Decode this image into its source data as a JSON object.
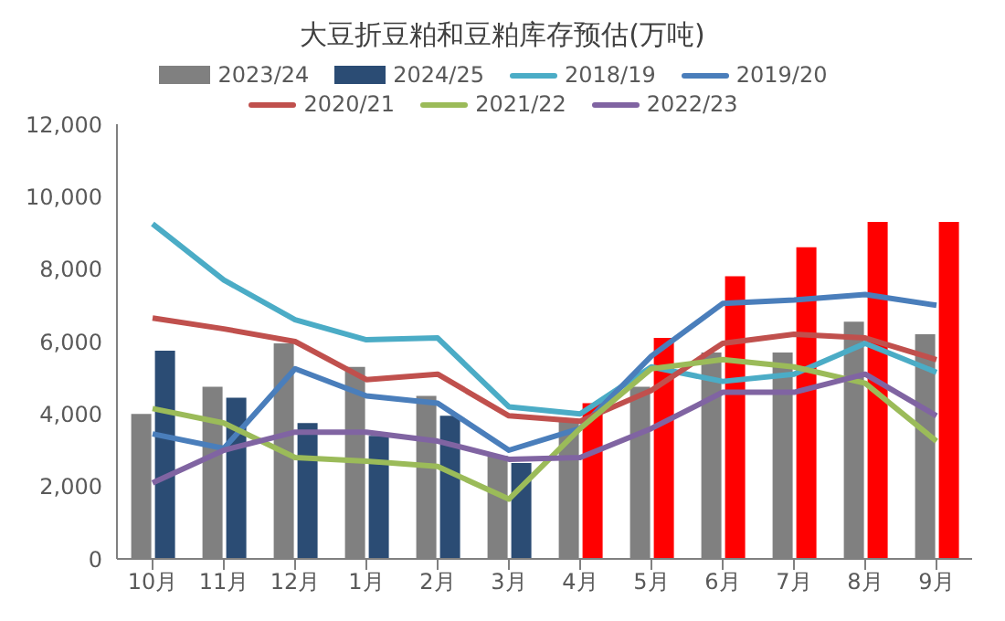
{
  "chart_data": {
    "type": "bar",
    "title": "大豆折豆粕和豆粕库存预估(万吨)",
    "categories": [
      "10月",
      "11月",
      "12月",
      "1月",
      "2月",
      "3月",
      "4月",
      "5月",
      "6月",
      "7月",
      "8月",
      "9月"
    ],
    "ylim": [
      0,
      12000
    ],
    "yticks": [
      {
        "value": 0,
        "label": "0"
      },
      {
        "value": 2000,
        "label": "2,000"
      },
      {
        "value": 4000,
        "label": "4,000"
      },
      {
        "value": 6000,
        "label": "6,000"
      },
      {
        "value": 8000,
        "label": "8,000"
      },
      {
        "value": 10000,
        "label": "10,000"
      },
      {
        "value": 12000,
        "label": "12,000"
      }
    ],
    "grid": false,
    "legend": "top",
    "series": [
      {
        "name": "2023/24",
        "color": "#808080",
        "values": [
          4000,
          4750,
          5950,
          5300,
          4500,
          2850,
          3800,
          4750,
          5700,
          5700,
          6550,
          6200
        ]
      },
      {
        "name": "2024/25",
        "color": "#2b4c74",
        "colors": [
          "#2b4c74",
          "#2b4c74",
          "#2b4c74",
          "#2b4c74",
          "#2b4c74",
          "#2b4c74",
          "#ff0000",
          "#ff0000",
          "#ff0000",
          "#ff0000",
          "#ff0000",
          "#ff0000"
        ],
        "values": [
          5750,
          4450,
          3750,
          3400,
          3950,
          2650,
          4300,
          6100,
          7800,
          8600,
          9300,
          9300
        ]
      },
      {
        "name": "2018/19",
        "type": "line",
        "color": "#4bacc6",
        "values": [
          9250,
          7700,
          6600,
          6050,
          6100,
          4200,
          4000,
          5300,
          4900,
          5100,
          5950,
          5150
        ]
      },
      {
        "name": "2019/20",
        "type": "line",
        "color": "#4a7ebb",
        "values": [
          3450,
          3050,
          5250,
          4500,
          4300,
          3000,
          3600,
          5600,
          7050,
          7150,
          7300,
          7000
        ]
      },
      {
        "name": "2020/21",
        "type": "line",
        "color": "#c0504d",
        "values": [
          6650,
          6350,
          6000,
          4950,
          5100,
          3950,
          3800,
          4650,
          5950,
          6200,
          6100,
          5500
        ]
      },
      {
        "name": "2021/22",
        "type": "line",
        "color": "#9bbb59",
        "values": [
          4150,
          3750,
          2800,
          2700,
          2550,
          1650,
          3600,
          5250,
          5500,
          5300,
          4850,
          3250
        ]
      },
      {
        "name": "2022/23",
        "type": "line",
        "color": "#8064a2",
        "values": [
          2100,
          3000,
          3500,
          3500,
          3250,
          2750,
          2800,
          3600,
          4600,
          4600,
          5100,
          3950
        ]
      }
    ]
  }
}
